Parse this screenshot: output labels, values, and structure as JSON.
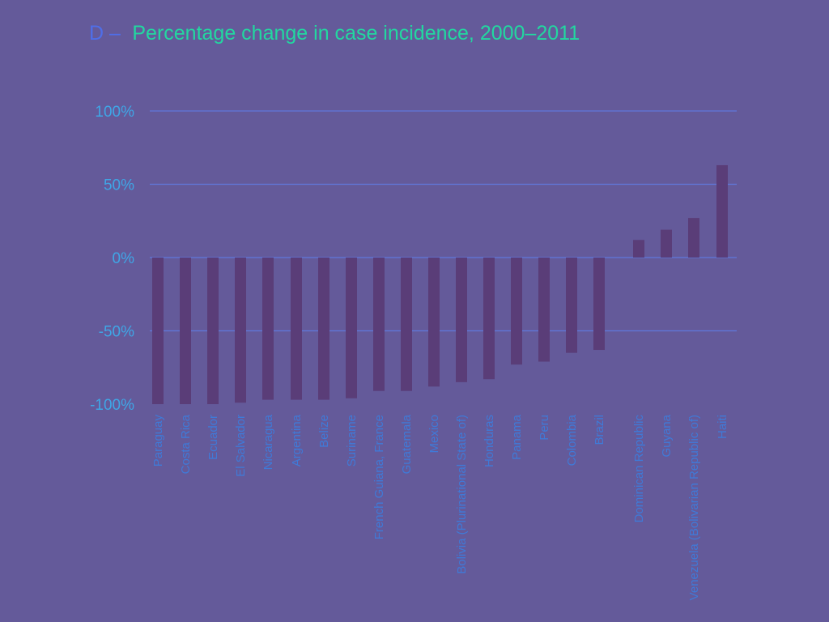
{
  "chart_data": {
    "type": "bar",
    "title_prefix": "D –",
    "title": "Percentage change in case incidence, 2000–2011",
    "xlabel": "",
    "ylabel": "",
    "ylim": [
      -100,
      100
    ],
    "y_ticks": [
      100,
      50,
      0,
      -50,
      -100
    ],
    "y_tick_labels": [
      "100%",
      "50%",
      "0%",
      "-50%",
      "-100%"
    ],
    "grid": true,
    "categories": [
      "Paraguay",
      "Costa Rica",
      "Ecuador",
      "El Salvador",
      "Nicaragua",
      "Argentina",
      "Belize",
      "Suriname",
      "French Guiana, France",
      "Guatemala",
      "Mexico",
      "Bolivia (Plurinational State of)",
      "Honduras",
      "Panama",
      "Peru",
      "Colombia",
      "Brazil",
      "Dominican Republic",
      "Guyana",
      "Venezuela (Bolivarian Republic of)",
      "Haiti"
    ],
    "values": [
      -100,
      -100,
      -100,
      -99,
      -97,
      -97,
      -97,
      -96,
      -91,
      -91,
      -88,
      -85,
      -83,
      -73,
      -71,
      -65,
      -63,
      12,
      19,
      27,
      63
    ],
    "colors": {
      "bar": "#5a3d78",
      "grid": "#5f78dc",
      "background": "#645a9a"
    }
  }
}
